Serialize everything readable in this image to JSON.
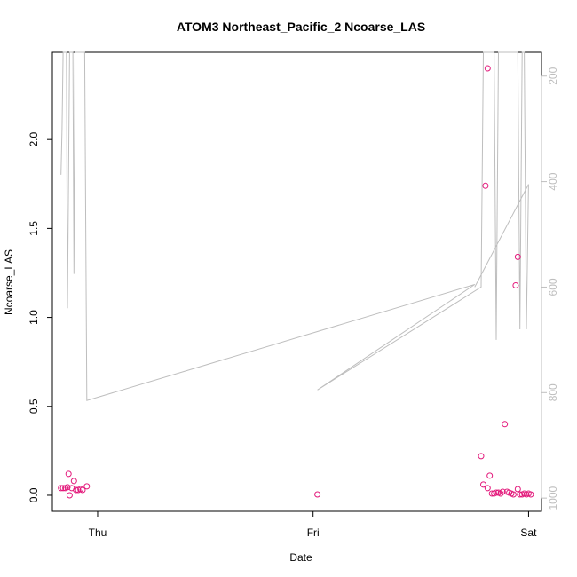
{
  "chart_data": {
    "type": "scatter",
    "title": "ATOM3 Northeast_Pacific_2 Ncoarse_LAS",
    "xlabel": "Date",
    "ylabel": "Ncoarse_LAS",
    "x_ticks": [
      {
        "value": 0.0,
        "label": "Thu"
      },
      {
        "value": 1.0,
        "label": "Fri"
      },
      {
        "value": 2.0,
        "label": "Sat"
      }
    ],
    "y_ticks": [
      "0.0",
      "0.5",
      "1.0",
      "1.5",
      "2.0"
    ],
    "ylim": [
      -0.09,
      2.49
    ],
    "xlim": [
      -0.21,
      2.06
    ],
    "secondary_axis": {
      "side": "right",
      "color": "#bebebe",
      "reversed": true,
      "ticks": [
        "200",
        "400",
        "600",
        "800",
        "1000"
      ],
      "ylim": [
        1025,
        155
      ]
    },
    "series": [
      {
        "type": "points",
        "color": "#e3197b",
        "x": [
          -0.17,
          -0.16,
          -0.15,
          -0.14,
          -0.135,
          -0.13,
          -0.12,
          -0.11,
          -0.1,
          -0.09,
          -0.08,
          -0.07,
          -0.05,
          1.02,
          1.78,
          1.79,
          1.8,
          1.81,
          1.81,
          1.82,
          1.83,
          1.84,
          1.85,
          1.86,
          1.87,
          1.88,
          1.89,
          1.9,
          1.91,
          1.92,
          1.93,
          1.94,
          1.95,
          1.95,
          1.96,
          1.97,
          1.98,
          1.99,
          2.0,
          2.01
        ],
        "y": [
          0.04,
          0.04,
          0.04,
          0.045,
          0.12,
          0.0,
          0.04,
          0.08,
          0.03,
          0.03,
          0.035,
          0.03,
          0.05,
          0.005,
          0.22,
          0.06,
          1.74,
          0.04,
          2.4,
          0.11,
          0.01,
          0.01,
          0.015,
          0.015,
          0.01,
          0.02,
          0.4,
          0.02,
          0.015,
          0.01,
          0.005,
          1.18,
          1.34,
          0.035,
          0.005,
          0.005,
          0.01,
          0.005,
          0.01,
          0.005
        ]
      },
      {
        "type": "line",
        "color": "#bebebe",
        "axis": "right",
        "x": [
          -0.17,
          -0.165,
          -0.16,
          -0.15,
          -0.145,
          -0.14,
          -0.13,
          -0.12,
          -0.115,
          -0.11,
          -0.105,
          -0.1,
          -0.095,
          -0.09,
          -0.08,
          -0.07,
          -0.06,
          -0.05,
          1.75,
          1.02,
          1.78,
          1.79,
          1.8,
          1.81,
          1.82,
          1.83,
          1.84,
          1.85,
          1.86,
          1.87,
          1.88,
          1.89,
          1.9,
          1.91,
          1.92,
          1.93,
          1.94,
          1.95,
          1.96,
          1.97,
          1.98,
          1.99,
          2.0,
          1.75
        ],
        "y": [
          387,
          300,
          155,
          155,
          155,
          640,
          155,
          155,
          155,
          575,
          155,
          155,
          155,
          155,
          155,
          155,
          155,
          815,
          595,
          795,
          600,
          155,
          155,
          155,
          155,
          155,
          155,
          700,
          155,
          155,
          155,
          155,
          155,
          155,
          155,
          155,
          155,
          155,
          680,
          155,
          155,
          680,
          405,
          600
        ]
      }
    ]
  }
}
